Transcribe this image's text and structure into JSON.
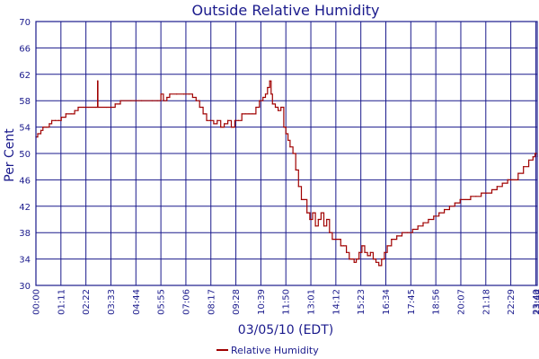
{
  "colors": {
    "background": "#ffffff",
    "plot_background": "#ffffff",
    "grid": "#1a1a8c",
    "axis": "#1a1a8c",
    "text": "#1a1a8c",
    "series": "#a00000"
  },
  "chart_data": {
    "type": "line",
    "title": "Outside Relative Humidity",
    "xlabel": "03/05/10 (EDT)",
    "ylabel": "Per Cent",
    "ylim": [
      30,
      70
    ],
    "yticks": [
      30,
      34,
      38,
      42,
      46,
      50,
      54,
      58,
      62,
      66,
      70
    ],
    "xlim": [
      0,
      1424
    ],
    "xticks": [
      {
        "min": 0,
        "label": "00:00"
      },
      {
        "min": 71,
        "label": "01:11"
      },
      {
        "min": 142,
        "label": "02:22"
      },
      {
        "min": 213,
        "label": "03:33"
      },
      {
        "min": 284,
        "label": "04:44"
      },
      {
        "min": 355,
        "label": "05:55"
      },
      {
        "min": 426,
        "label": "07:06"
      },
      {
        "min": 497,
        "label": "08:17"
      },
      {
        "min": 568,
        "label": "09:28"
      },
      {
        "min": 639,
        "label": "10:39"
      },
      {
        "min": 710,
        "label": "11:50"
      },
      {
        "min": 781,
        "label": "13:01"
      },
      {
        "min": 852,
        "label": "14:12"
      },
      {
        "min": 923,
        "label": "15:23"
      },
      {
        "min": 994,
        "label": "16:34"
      },
      {
        "min": 1065,
        "label": "17:45"
      },
      {
        "min": 1136,
        "label": "18:56"
      },
      {
        "min": 1207,
        "label": "20:07"
      },
      {
        "min": 1278,
        "label": "21:18"
      },
      {
        "min": 1349,
        "label": "22:29"
      },
      {
        "min": 1420,
        "label": "23:40"
      },
      {
        "min": 1424,
        "label": "23:44"
      }
    ],
    "grid": true,
    "legend_position": "bottom",
    "series": [
      {
        "name": "Relative Humidity",
        "points": [
          [
            0,
            52.5
          ],
          [
            5,
            53
          ],
          [
            10,
            53
          ],
          [
            14,
            53.5
          ],
          [
            20,
            54
          ],
          [
            30,
            54
          ],
          [
            38,
            54.5
          ],
          [
            45,
            55
          ],
          [
            55,
            55
          ],
          [
            65,
            55
          ],
          [
            72,
            55.5
          ],
          [
            85,
            56
          ],
          [
            100,
            56
          ],
          [
            110,
            56.5
          ],
          [
            120,
            57
          ],
          [
            150,
            57
          ],
          [
            170,
            57
          ],
          [
            175,
            61
          ],
          [
            176,
            57
          ],
          [
            200,
            57
          ],
          [
            215,
            57
          ],
          [
            225,
            57.5
          ],
          [
            240,
            58
          ],
          [
            270,
            58
          ],
          [
            300,
            58
          ],
          [
            330,
            58
          ],
          [
            345,
            58
          ],
          [
            355,
            59
          ],
          [
            362,
            58
          ],
          [
            372,
            58.5
          ],
          [
            380,
            59
          ],
          [
            400,
            59
          ],
          [
            420,
            59
          ],
          [
            435,
            59
          ],
          [
            445,
            58.5
          ],
          [
            455,
            58
          ],
          [
            465,
            57
          ],
          [
            475,
            56
          ],
          [
            485,
            55
          ],
          [
            495,
            55
          ],
          [
            505,
            54.5
          ],
          [
            515,
            55
          ],
          [
            525,
            54
          ],
          [
            535,
            54.5
          ],
          [
            545,
            55
          ],
          [
            555,
            54
          ],
          [
            565,
            55
          ],
          [
            575,
            55
          ],
          [
            585,
            56
          ],
          [
            595,
            56
          ],
          [
            605,
            56
          ],
          [
            615,
            56
          ],
          [
            625,
            57
          ],
          [
            635,
            58
          ],
          [
            645,
            58.5
          ],
          [
            652,
            59
          ],
          [
            658,
            60
          ],
          [
            664,
            61
          ],
          [
            668,
            59
          ],
          [
            672,
            57.5
          ],
          [
            680,
            57
          ],
          [
            688,
            56.5
          ],
          [
            696,
            57
          ],
          [
            704,
            54
          ],
          [
            710,
            53
          ],
          [
            716,
            52
          ],
          [
            722,
            51
          ],
          [
            730,
            50
          ],
          [
            738,
            47.5
          ],
          [
            746,
            45
          ],
          [
            754,
            43
          ],
          [
            762,
            43
          ],
          [
            770,
            41
          ],
          [
            778,
            40
          ],
          [
            786,
            41
          ],
          [
            794,
            39
          ],
          [
            802,
            40
          ],
          [
            810,
            41
          ],
          [
            818,
            39
          ],
          [
            826,
            40
          ],
          [
            834,
            38
          ],
          [
            842,
            37
          ],
          [
            850,
            37
          ],
          [
            858,
            37
          ],
          [
            866,
            36
          ],
          [
            874,
            36
          ],
          [
            882,
            35
          ],
          [
            890,
            34
          ],
          [
            898,
            34
          ],
          [
            904,
            33.5
          ],
          [
            910,
            34
          ],
          [
            918,
            35
          ],
          [
            926,
            36
          ],
          [
            934,
            35
          ],
          [
            942,
            34.5
          ],
          [
            950,
            35
          ],
          [
            958,
            34
          ],
          [
            966,
            33.5
          ],
          [
            974,
            33
          ],
          [
            982,
            34
          ],
          [
            990,
            35
          ],
          [
            998,
            36
          ],
          [
            1010,
            37
          ],
          [
            1025,
            37.5
          ],
          [
            1040,
            38
          ],
          [
            1055,
            38
          ],
          [
            1070,
            38.5
          ],
          [
            1085,
            39
          ],
          [
            1100,
            39.5
          ],
          [
            1115,
            40
          ],
          [
            1130,
            40.5
          ],
          [
            1145,
            41
          ],
          [
            1160,
            41.5
          ],
          [
            1175,
            42
          ],
          [
            1190,
            42.5
          ],
          [
            1205,
            43
          ],
          [
            1220,
            43
          ],
          [
            1235,
            43.5
          ],
          [
            1250,
            43.5
          ],
          [
            1265,
            44
          ],
          [
            1280,
            44
          ],
          [
            1295,
            44.5
          ],
          [
            1310,
            45
          ],
          [
            1325,
            45.5
          ],
          [
            1340,
            46
          ],
          [
            1355,
            46
          ],
          [
            1370,
            47
          ],
          [
            1385,
            48
          ],
          [
            1400,
            49
          ],
          [
            1412,
            49.5
          ],
          [
            1418,
            50
          ],
          [
            1424,
            49.5
          ]
        ]
      }
    ]
  }
}
